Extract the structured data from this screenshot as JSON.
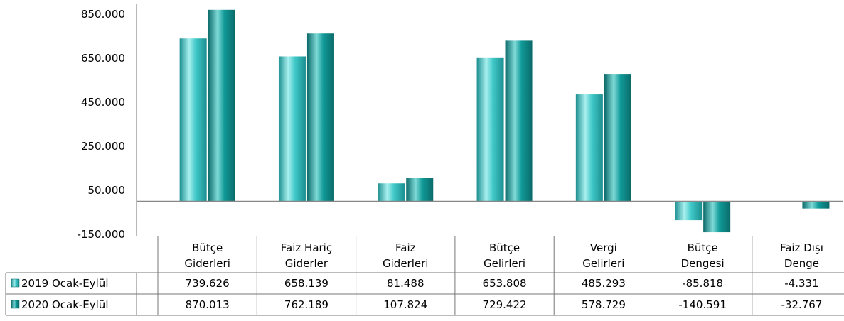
{
  "chart_data": {
    "type": "bar",
    "categories": [
      [
        "Bütçe",
        "Giderleri"
      ],
      [
        "Faiz Hariç",
        "Giderler"
      ],
      [
        "Faiz",
        "Giderleri"
      ],
      [
        "Bütçe",
        "Gelirleri"
      ],
      [
        "Vergi",
        "Gelirleri"
      ],
      [
        "Bütçe",
        "Dengesi"
      ],
      [
        "Faiz Dışı",
        "Denge"
      ]
    ],
    "series": [
      {
        "name": "2019  Ocak-Eylül",
        "values": [
          739626,
          658139,
          81488,
          653808,
          485293,
          -85818,
          -4331
        ],
        "labels": [
          "739.626",
          "658.139",
          "81.488",
          "653.808",
          "485.293",
          "-85.818",
          "-4.331"
        ],
        "color": "#40c8c8"
      },
      {
        "name": "2020  Ocak-Eylül",
        "values": [
          870013,
          762189,
          107824,
          729422,
          578729,
          -140591,
          -32767
        ],
        "labels": [
          "870.013",
          "762.189",
          "107.824",
          "729.422",
          "578.729",
          "-140.591",
          "-32.767"
        ],
        "color": "#109a98"
      }
    ],
    "yticks": [
      "850.000",
      "650.000",
      "450.000",
      "250.000",
      "50.000",
      "-150.000"
    ],
    "ylim": [
      -150000,
      870013
    ],
    "legend": "data-table-left",
    "grid": false
  }
}
